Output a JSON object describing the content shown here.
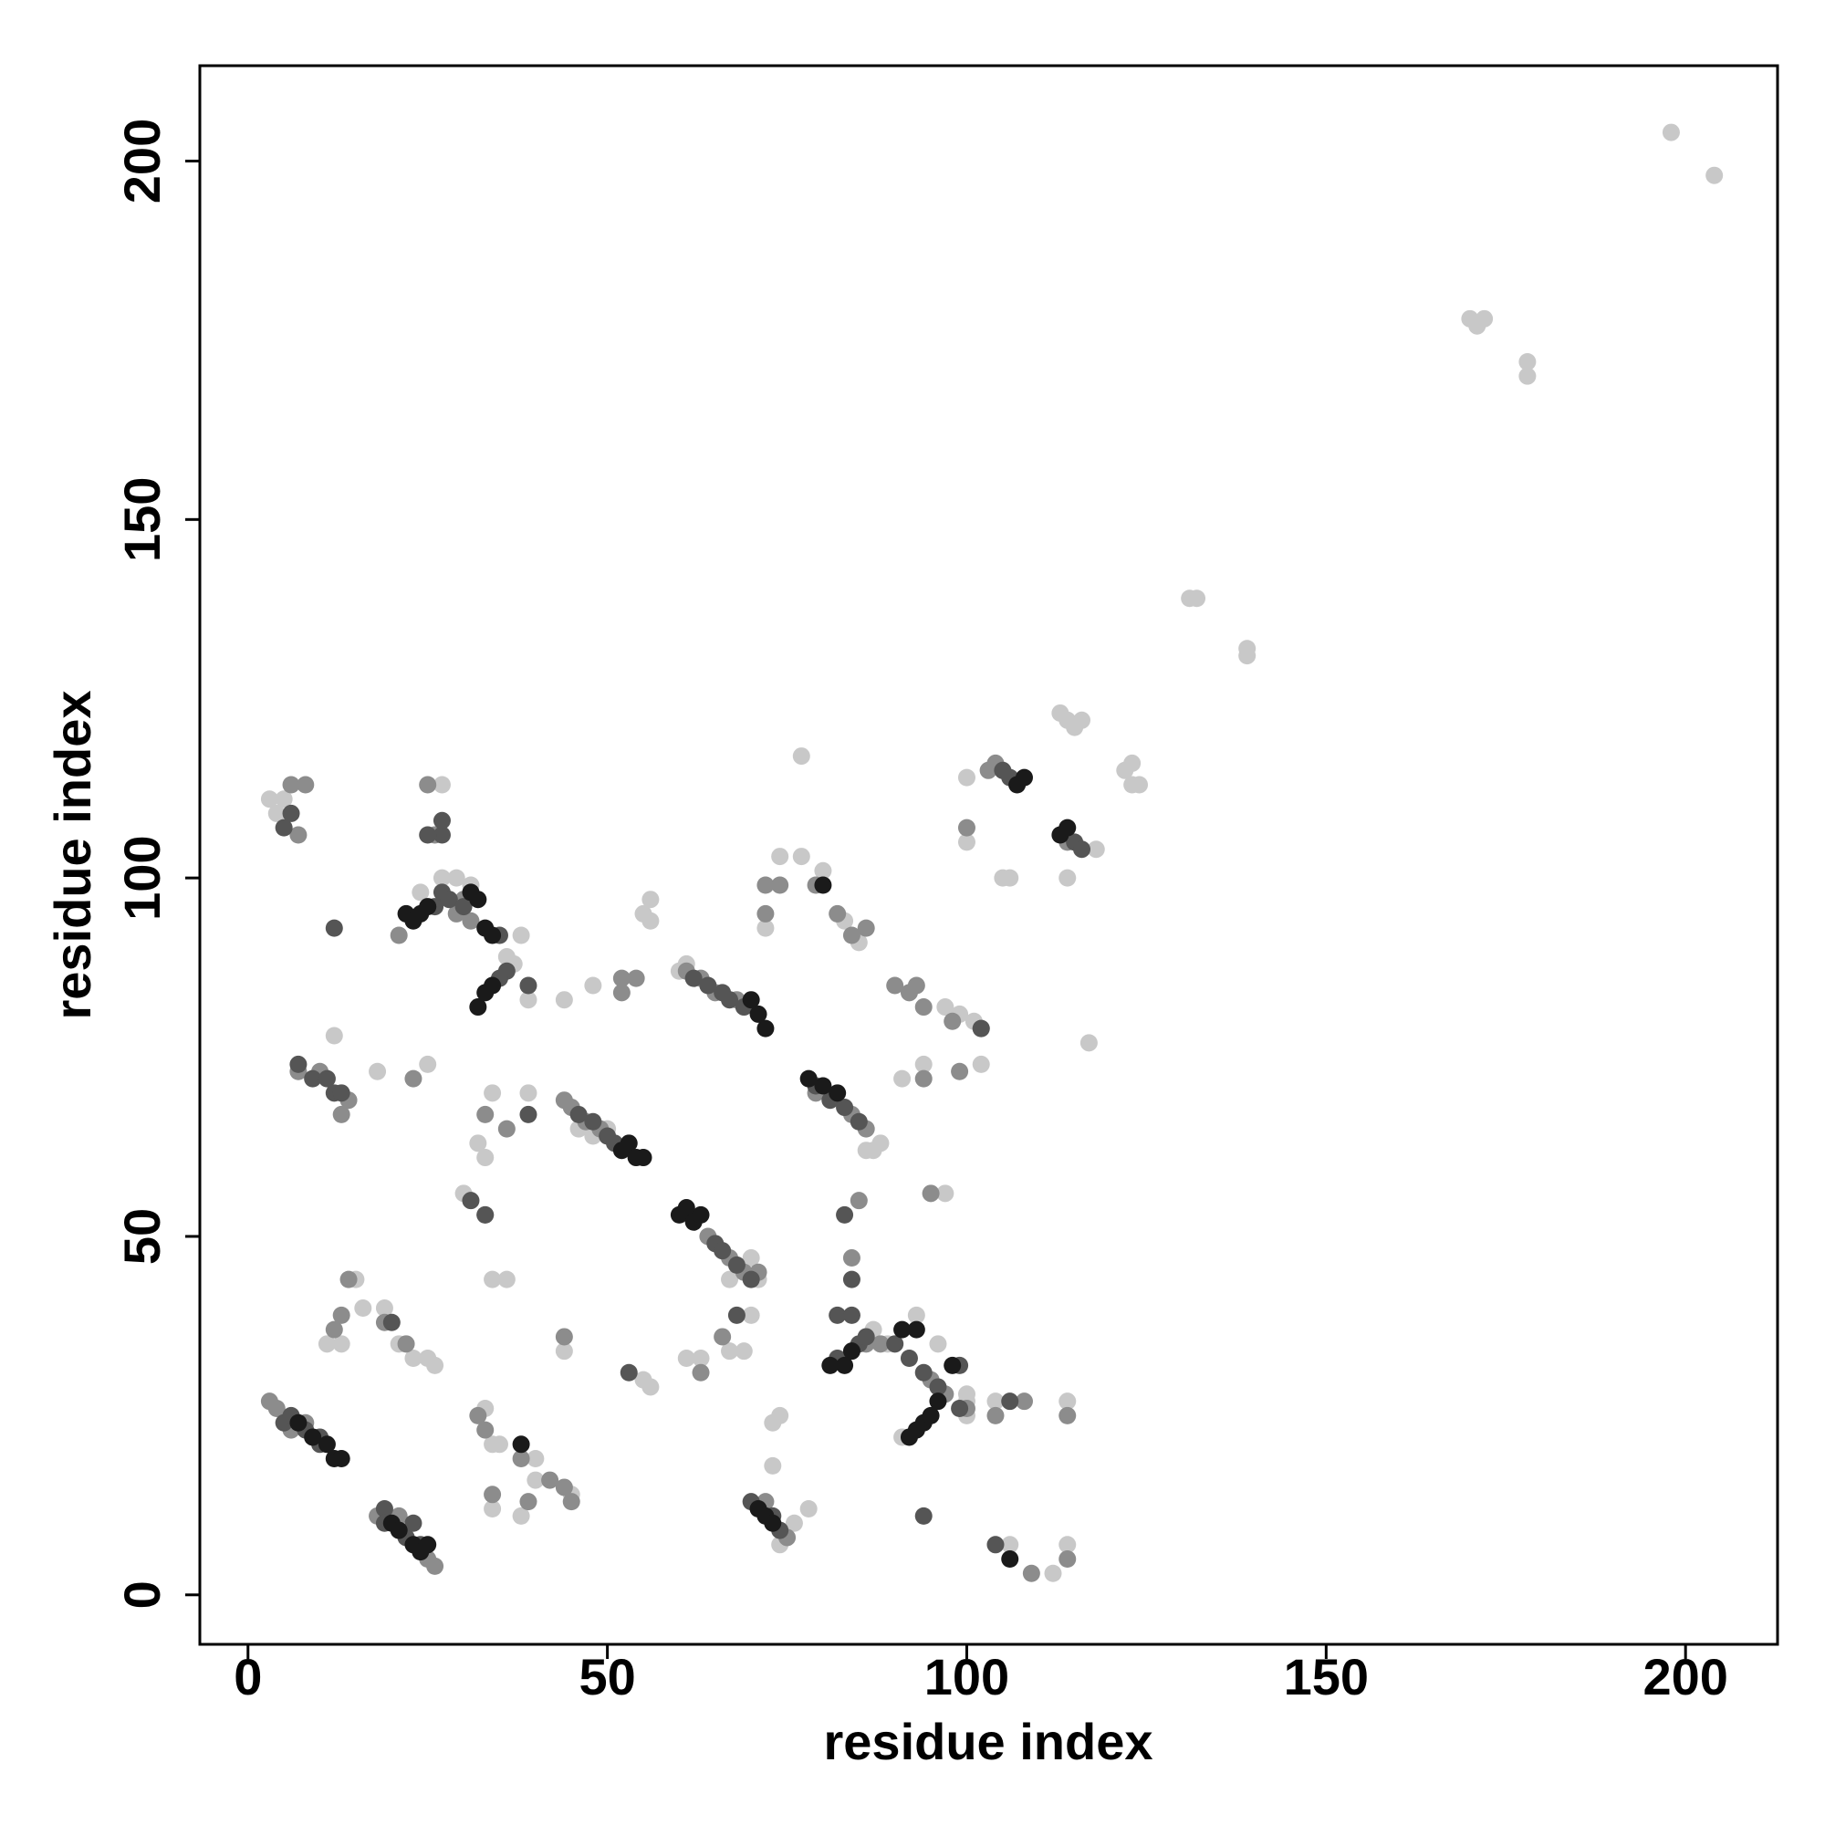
{
  "chart_data": {
    "type": "scatter",
    "xlabel": "residue index",
    "ylabel": "residue index",
    "xlim": [
      -6.7,
      212.8
    ],
    "ylim": [
      -6.9,
      213.3
    ],
    "xticks": [
      0,
      50,
      100,
      150,
      200
    ],
    "yticks": [
      0,
      50,
      100,
      150,
      200
    ],
    "grid": false,
    "series": [
      {
        "color": "#c8c8c8",
        "x": [
          3,
          4,
          5,
          12,
          18,
          25,
          27,
          24,
          27,
          29,
          31,
          36,
          37,
          38,
          39,
          44,
          48,
          55,
          56,
          56,
          34,
          32,
          33,
          39,
          30,
          34,
          36,
          15,
          16,
          11,
          13,
          19,
          21,
          23,
          25,
          26,
          33,
          34,
          35,
          40,
          40,
          38,
          34,
          45,
          44,
          55,
          56,
          61,
          63,
          67,
          69,
          70,
          73,
          74,
          73,
          76,
          78,
          74,
          77,
          74,
          77,
          80,
          72,
          83,
          85,
          97,
          99,
          101,
          102,
          94,
          91,
          100,
          100,
          105,
          106,
          113,
          114,
          115,
          116,
          114,
          118,
          122,
          123,
          123,
          124,
          117,
          131,
          132,
          139,
          139,
          170,
          171,
          172,
          178,
          178,
          198,
          204,
          97,
          87,
          89,
          91,
          100,
          100,
          104,
          114,
          104,
          106,
          112,
          114,
          46,
          48,
          50,
          86,
          87,
          88,
          71,
          70,
          67,
          60,
          61,
          93,
          96,
          100
        ],
        "y": [
          111,
          109,
          111,
          78,
          73,
          74,
          113,
          98,
          100,
          100,
          99,
          89,
          88,
          92,
          83,
          83,
          85,
          95,
          97,
          94,
          70,
          63,
          61,
          70,
          56,
          44,
          44,
          44,
          40,
          35,
          35,
          40,
          35,
          33,
          33,
          32,
          26,
          21,
          21,
          19,
          16,
          11,
          12,
          14,
          34,
          30,
          29,
          33,
          33,
          34,
          34,
          39,
          24,
          25,
          18,
          10,
          12,
          7,
          117,
          103,
          103,
          101,
          93,
          94,
          91,
          82,
          81,
          80,
          74,
          74,
          72,
          114,
          105,
          100,
          100,
          123,
          122,
          121,
          122,
          100,
          104,
          115,
          116,
          113,
          113,
          77,
          139,
          139,
          131,
          132,
          178,
          177,
          178,
          172,
          170,
          204,
          198,
          56,
          37,
          35,
          22,
          25,
          27,
          27,
          27,
          7,
          7,
          3,
          7,
          65,
          64,
          65,
          62,
          62,
          63,
          44,
          47,
          44,
          87,
          88,
          39,
          35,
          28
        ]
      },
      {
        "color": "#8c8c8c",
        "x": [
          3,
          4,
          6,
          8,
          18,
          21,
          25,
          26,
          21,
          29,
          30,
          31,
          7,
          10,
          14,
          13,
          44,
          45,
          47,
          49,
          61,
          63,
          65,
          68,
          79,
          84,
          86,
          64,
          67,
          69,
          71,
          72,
          75,
          86,
          88,
          95,
          97,
          100,
          103,
          104,
          114,
          6,
          8,
          7,
          25,
          23,
          13,
          12,
          14,
          19,
          22,
          32,
          33,
          34,
          38,
          44,
          44,
          52,
          52,
          54,
          63,
          66,
          72,
          72,
          74,
          79,
          82,
          84,
          86,
          90,
          92,
          93,
          94,
          98,
          102,
          99,
          94,
          84,
          85,
          95,
          104,
          108,
          114,
          109,
          114,
          36,
          33,
          39,
          42,
          45,
          33,
          100,
          26
        ],
        "y": [
          27,
          26,
          23,
          24,
          11,
          11,
          5,
          4,
          92,
          95,
          97,
          94,
          73,
          73,
          69,
          67,
          69,
          68,
          66,
          65,
          87,
          86,
          84,
          83,
          70,
          67,
          65,
          50,
          47,
          45,
          45,
          13,
          8,
          35,
          35,
          30,
          28,
          26,
          115,
          116,
          105,
          113,
          113,
          106,
          113,
          72,
          39,
          37,
          44,
          38,
          35,
          25,
          23,
          14,
          19,
          15,
          36,
          84,
          86,
          86,
          31,
          36,
          95,
          99,
          99,
          99,
          95,
          92,
          93,
          85,
          84,
          85,
          82,
          80,
          79,
          73,
          72,
          47,
          55,
          56,
          25,
          27,
          25,
          3,
          5,
          65,
          67,
          13,
          16,
          13,
          53,
          107,
          106
        ]
      },
      {
        "color": "#555555",
        "x": [
          5,
          6,
          8,
          10,
          10,
          19,
          19,
          22,
          23,
          24,
          26,
          27,
          28,
          30,
          35,
          36,
          35,
          7,
          9,
          11,
          12,
          13,
          46,
          48,
          50,
          51,
          62,
          64,
          66,
          67,
          69,
          79,
          81,
          83,
          85,
          65,
          66,
          68,
          70,
          70,
          73,
          74,
          82,
          85,
          86,
          90,
          92,
          94,
          96,
          99,
          105,
          106,
          115,
          116,
          12,
          27,
          25,
          5,
          6,
          83,
          94,
          106,
          104,
          102,
          20,
          31,
          33,
          39,
          39,
          53,
          68,
          82,
          84,
          84,
          99,
          27
        ],
        "y": [
          24,
          25,
          23,
          22,
          21,
          12,
          10,
          8,
          10,
          7,
          96,
          98,
          97,
          96,
          92,
          87,
          86,
          74,
          72,
          72,
          70,
          70,
          67,
          66,
          64,
          63,
          86,
          85,
          84,
          83,
          82,
          71,
          69,
          68,
          66,
          49,
          48,
          46,
          44,
          13,
          11,
          9,
          33,
          35,
          36,
          35,
          33,
          31,
          29,
          32,
          115,
          114,
          105,
          104,
          93,
          106,
          106,
          107,
          109,
          53,
          11,
          27,
          7,
          79,
          38,
          55,
          53,
          67,
          85,
          31,
          39,
          39,
          39,
          44,
          26,
          108
        ]
      },
      {
        "color": "#1a1a1a",
        "x": [
          7,
          9,
          11,
          12,
          13,
          20,
          21,
          23,
          24,
          25,
          22,
          23,
          24,
          25,
          31,
          32,
          33,
          34,
          32,
          33,
          34,
          52,
          53,
          54,
          55,
          70,
          71,
          72,
          78,
          80,
          82,
          60,
          61,
          62,
          63,
          71,
          72,
          73,
          81,
          83,
          84,
          92,
          93,
          94,
          95,
          96,
          98,
          91,
          93,
          107,
          108,
          113,
          114,
          38,
          106,
          80
        ],
        "y": [
          24,
          22,
          21,
          19,
          19,
          10,
          9,
          7,
          6,
          7,
          95,
          94,
          95,
          96,
          98,
          97,
          93,
          92,
          82,
          84,
          85,
          62,
          63,
          61,
          61,
          83,
          81,
          79,
          72,
          71,
          70,
          53,
          54,
          52,
          53,
          12,
          11,
          10,
          32,
          32,
          34,
          22,
          23,
          24,
          25,
          27,
          32,
          37,
          37,
          113,
          114,
          106,
          107,
          21,
          5,
          99
        ]
      }
    ]
  }
}
